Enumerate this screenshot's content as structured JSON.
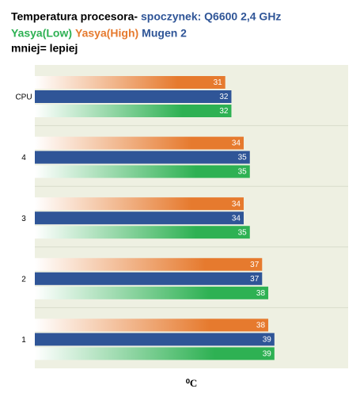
{
  "chart_data": {
    "type": "bar",
    "orientation": "horizontal",
    "title": "Temperatura procesora-",
    "subtitle": "spoczynek: Q6600 2,4 GHz",
    "annotation": "mniej= lepiej",
    "x_label": "⁰C",
    "categories": [
      "CPU",
      "4",
      "3",
      "2",
      "1"
    ],
    "series": [
      {
        "name": "Yasya(Low)",
        "color": "#2eb153",
        "values": [
          32,
          35,
          35,
          38,
          39
        ]
      },
      {
        "name": "Yasya(High)",
        "color": "#e67a2e",
        "values": [
          31,
          34,
          34,
          37,
          38
        ]
      },
      {
        "name": "Mugen 2",
        "color": "#2f5597",
        "values": [
          32,
          35,
          34,
          37,
          39
        ]
      }
    ],
    "xlim": [
      0,
      51
    ]
  }
}
